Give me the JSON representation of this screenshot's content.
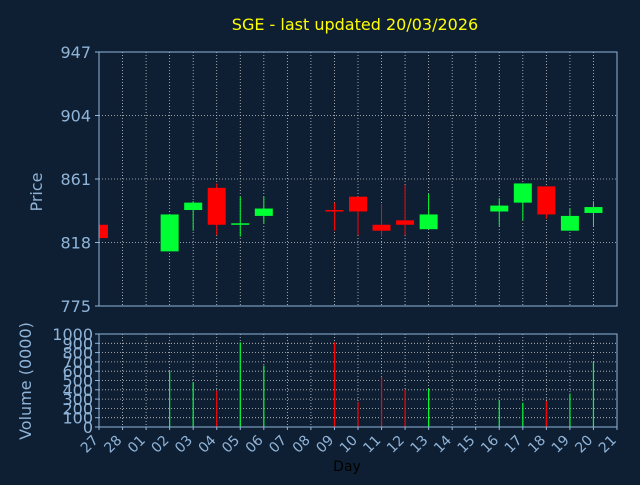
{
  "title": "SGE - last updated 20/03/2026",
  "colors": {
    "background": "#0f1f33",
    "title": "#ffff00",
    "axis_text": "#8fb4d8",
    "grid": "#c8c8c8",
    "up": "#00ff33",
    "down": "#ff0000"
  },
  "chart_data": [
    {
      "type": "candlestick",
      "ylabel": "Price",
      "ylim": [
        775,
        947
      ],
      "yticks": [
        775,
        818,
        861,
        904,
        947
      ],
      "grid": true,
      "x_tick_labels": [
        "27",
        "28",
        "01",
        "02",
        "03",
        "04",
        "05",
        "06",
        "07",
        "08",
        "09",
        "10",
        "11",
        "12",
        "13",
        "14",
        "15",
        "16",
        "17",
        "18",
        "19",
        "20",
        "21"
      ],
      "candles": [
        {
          "x": "27",
          "open": 830,
          "high": 830,
          "low": 821,
          "close": 821,
          "up": false
        },
        {
          "x": "02",
          "open": 812,
          "high": 837,
          "low": 812,
          "close": 837,
          "up": true
        },
        {
          "x": "03",
          "open": 840,
          "high": 846,
          "low": 826,
          "close": 845,
          "up": true
        },
        {
          "x": "04",
          "open": 855,
          "high": 858,
          "low": 823,
          "close": 830,
          "up": false
        },
        {
          "x": "05",
          "open": 830,
          "high": 849,
          "low": 822,
          "close": 831,
          "up": true
        },
        {
          "x": "06",
          "open": 836,
          "high": 849,
          "low": 831,
          "close": 841,
          "up": true
        },
        {
          "x": "09",
          "open": 840,
          "high": 845,
          "low": 826,
          "close": 840,
          "up": false
        },
        {
          "x": "10",
          "open": 849,
          "high": 849,
          "low": 823,
          "close": 839,
          "up": false
        },
        {
          "x": "11",
          "open": 830,
          "high": 844,
          "low": 822,
          "close": 826,
          "up": false
        },
        {
          "x": "12",
          "open": 833,
          "high": 857,
          "low": 823,
          "close": 830,
          "up": false
        },
        {
          "x": "13",
          "open": 827,
          "high": 851,
          "low": 827,
          "close": 837,
          "up": true
        },
        {
          "x": "16",
          "open": 839,
          "high": 848,
          "low": 829,
          "close": 843,
          "up": true
        },
        {
          "x": "17",
          "open": 845,
          "high": 858,
          "low": 833,
          "close": 858,
          "up": true
        },
        {
          "x": "18",
          "open": 856,
          "high": 856,
          "low": 834,
          "close": 837,
          "up": false
        },
        {
          "x": "19",
          "open": 826,
          "high": 841,
          "low": 826,
          "close": 836,
          "up": true
        },
        {
          "x": "20",
          "open": 838,
          "high": 846,
          "low": 829,
          "close": 842,
          "up": true
        }
      ]
    },
    {
      "type": "bar",
      "xlabel": "Day",
      "ylabel": "Volume (0000)",
      "ylim": [
        0,
        1000
      ],
      "yticks": [
        0,
        100,
        200,
        300,
        400,
        500,
        600,
        700,
        800,
        900,
        1000
      ],
      "grid": true,
      "bars": [
        {
          "x": "02",
          "value": 600,
          "up": true
        },
        {
          "x": "03",
          "value": 480,
          "up": true
        },
        {
          "x": "04",
          "value": 390,
          "up": false
        },
        {
          "x": "05",
          "value": 910,
          "up": true
        },
        {
          "x": "06",
          "value": 660,
          "up": true
        },
        {
          "x": "09",
          "value": 910,
          "up": false
        },
        {
          "x": "10",
          "value": 270,
          "up": false
        },
        {
          "x": "11",
          "value": 540,
          "up": false
        },
        {
          "x": "12",
          "value": 400,
          "up": false
        },
        {
          "x": "13",
          "value": 410,
          "up": true
        },
        {
          "x": "16",
          "value": 290,
          "up": true
        },
        {
          "x": "17",
          "value": 260,
          "up": true
        },
        {
          "x": "18",
          "value": 280,
          "up": false
        },
        {
          "x": "19",
          "value": 360,
          "up": true
        },
        {
          "x": "20",
          "value": 700,
          "up": true
        }
      ]
    }
  ]
}
